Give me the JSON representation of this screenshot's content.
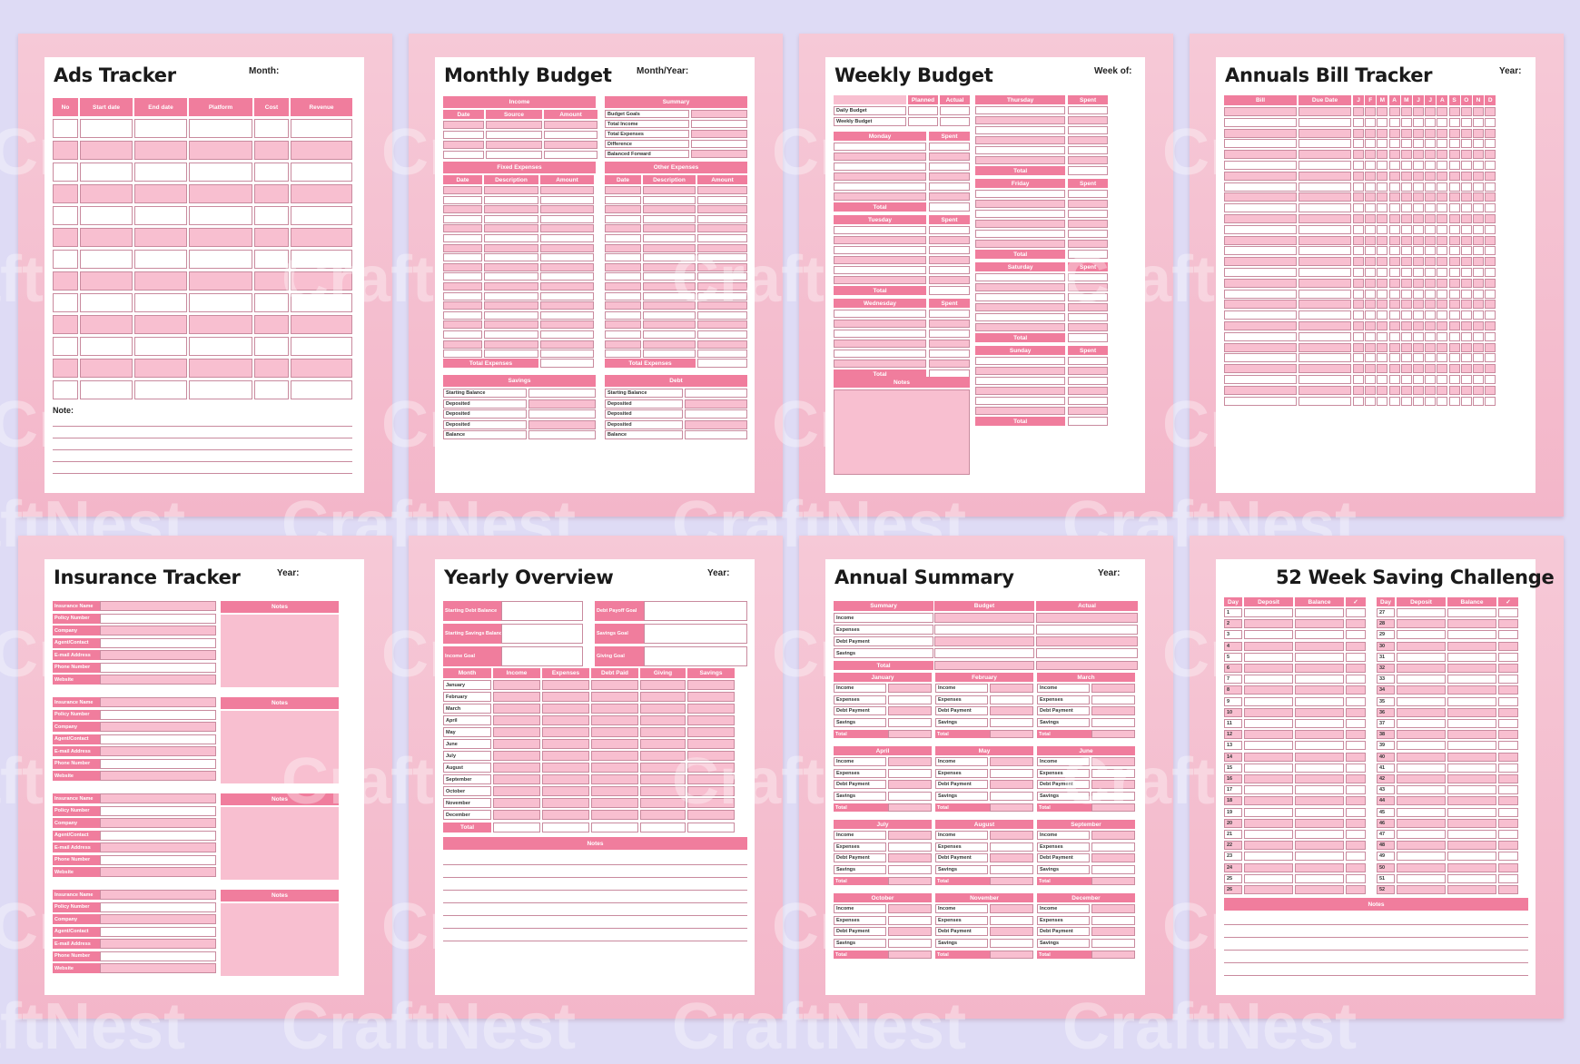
{
  "watermark": "CraftNest",
  "pages": {
    "ads": {
      "title": "Ads Tracker",
      "meta": "Month:",
      "columns": [
        "No",
        "Start date",
        "End date",
        "Platform",
        "Cost",
        "Revenue"
      ],
      "note_label": "Note:"
    },
    "monthly": {
      "title": "Monthly Budget",
      "meta": "Month/Year:",
      "income": {
        "header": "Income",
        "cols": [
          "Date",
          "Source",
          "Amount"
        ]
      },
      "summary": {
        "header": "Summary",
        "rows": [
          "Budget Goals",
          "Total Income",
          "Total Expenses",
          "Difference",
          "Balanced Forward"
        ]
      },
      "fixed": {
        "header": "Fixed Expenses",
        "cols": [
          "Date",
          "Description",
          "Amount"
        ],
        "total": "Total Expenses"
      },
      "other": {
        "header": "Other Expenses",
        "cols": [
          "Date",
          "Description",
          "Amount"
        ],
        "total": "Total Expenses"
      },
      "savings": {
        "header": "Savings",
        "rows": [
          "Starting Balance",
          "Deposited",
          "Deposited",
          "Deposited",
          "Balance"
        ]
      },
      "debt": {
        "header": "Debt",
        "rows": [
          "Starting Balance",
          "Deposited",
          "Deposited",
          "Deposited",
          "Balance"
        ]
      }
    },
    "weekly": {
      "title": "Weekly Budget",
      "meta": "Week of:",
      "top_cols": [
        "Planned",
        "Actual"
      ],
      "top_rows": [
        "Daily Budget",
        "Weekly Budget"
      ],
      "spent": "Spent",
      "total": "Total",
      "left_days": [
        "Monday",
        "Tuesday",
        "Wednesday"
      ],
      "right_days": [
        "Thursday",
        "Friday",
        "Saturday",
        "Sunday"
      ],
      "notes": "Notes"
    },
    "bills": {
      "title": "Annuals Bill Tracker",
      "meta": "Year:",
      "cols": [
        "Bill",
        "Due Date"
      ],
      "months": [
        "J",
        "F",
        "M",
        "A",
        "M",
        "J",
        "J",
        "A",
        "S",
        "O",
        "N",
        "D"
      ]
    },
    "insurance": {
      "title": "Insurance Tracker",
      "meta": "Year:",
      "fields": [
        "Insurance Name",
        "Policy Number",
        "Company",
        "Agent/Contact",
        "E-mail Address",
        "Phone Number",
        "Website"
      ],
      "notes": "Notes"
    },
    "yearly": {
      "title": "Yearly Overview",
      "meta": "Year:",
      "goals_left": [
        "Starting Debt Balance",
        "Starting Savings Balance",
        "Income Goal"
      ],
      "goals_right": [
        "Debt Payoff Goal",
        "Savings Goal",
        "Giving Goal"
      ],
      "cols": [
        "Month",
        "Income",
        "Expenses",
        "Debt Paid",
        "Giving",
        "Savings"
      ],
      "months": [
        "January",
        "February",
        "March",
        "April",
        "May",
        "June",
        "July",
        "August",
        "September",
        "October",
        "November",
        "December"
      ],
      "total": "Total",
      "notes": "Notes"
    },
    "annual": {
      "title": "Annual Summary",
      "meta": "Year:",
      "cols": [
        "Summary",
        "Budget",
        "Actual"
      ],
      "rows": [
        "Income",
        "Expenses",
        "Debt Payment",
        "Savings"
      ],
      "total": "Total",
      "months": [
        "January",
        "February",
        "March",
        "April",
        "May",
        "June",
        "July",
        "August",
        "September",
        "October",
        "November",
        "December"
      ],
      "mrows": [
        "Income",
        "Expenses",
        "Debt Payment",
        "Savings"
      ]
    },
    "saving": {
      "title": "52 Week Saving Challenge",
      "cols": [
        "Day",
        "Deposit",
        "Balance",
        "✓"
      ],
      "notes": "Notes"
    }
  }
}
